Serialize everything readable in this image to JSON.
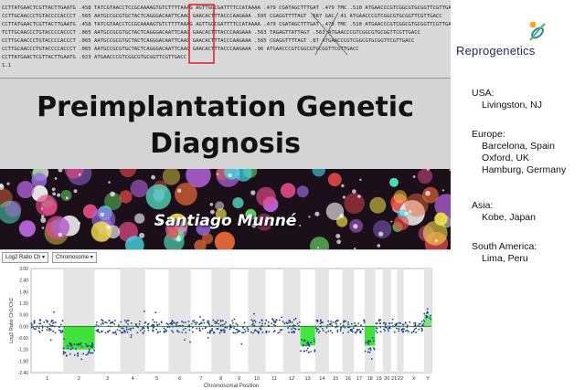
{
  "sequence": {
    "lines": [
      "CCTTATGAACTCGTTACTTGAATG .458 TATCGTAACCTCCGCAAAAGTGTCTTTTAAAG AGTTGGCGATTTTCCATAAAA .479 CGATAGCTTTGAT .479 TMC .510 ATGAACCCGTCGGCGTGCGGTTCGTTGACC",
      "CCTTGCAACCCTGTACCCCACCCT .565 AATGCCGCGTGCTACTCAGGGACAATTCAAG GAACACTTTACCCAAGAAA .595 CGAGGTTTTAGT .587 GAC .41 ATGAACCCGTCGGCGTGCGGTTCGTTGACC",
      "CCTTATGAACTCGTTACTTGAATG .458 TATCGTAACCTCCGCAAAAGTGTCTTTTAAAG AGTTGGCGATTTTCCATAAAA .479 CGATAGCTTTGAT .479 TMC .510 ATGAACCCGTCGGCGTGCGGTTCGTTGACC",
      "TCTTGCAACCCTGTACCCCACCCT .065 AATGCCGCGTGCTACTCAGGGACAATTCAAG GAACACTTTACCCAAGAAA .563 TAGAGTTATTAGT .563 ATGAACCCGTCGGCGTGCGGTTCGTTGACC",
      "CCTTGCAACCCTGTACCCCACCCT .065 AATGCCGCGTGCTACTCAGGGACAATTCAAG GAACACTTTACCCAAGAAA .565 CGAGGTTTTAGT .87 ATGAACCCGTCGGCGTGCGGTTCGTTGACC",
      "CCTTGCAACCCTGTACCCCACCCT .065 AATGCCGCGTGCTACTCAGGGACAATTCAAG GAACACTTTACCCAAGAAA .96 ATGAACCCGTCGGCGTGCGGTTCGTTGACC",
      "CCTTATGAACTCGTTACTTGAATG .023 ATGAACCCGTCGGCGTGCGGTTCGTTGACC",
      "1.1"
    ]
  },
  "slide": {
    "title": "Preimplantation Genetic Diagnosis",
    "author": "Santiago Munné"
  },
  "logo": {
    "text": "Reprogenetics",
    "colors": [
      "#f5a623",
      "#2c7fc0",
      "#5cb85c"
    ]
  },
  "locations": [
    {
      "region": "USA:",
      "cities": [
        "Livingston, NJ"
      ]
    },
    {
      "region": "Europe:",
      "cities": [
        "Barcelona, Spain",
        "Oxford, UK",
        "Hamburg, Germany"
      ]
    },
    {
      "region": "Asia:",
      "cities": [
        "Kobe, Japan"
      ]
    },
    {
      "region": "South America:",
      "cities": [
        "Lima, Peru"
      ]
    }
  ],
  "plot": {
    "dropdown_1": "Log2 Ratio Ch",
    "dropdown_2": "Chromosome",
    "ylabel": "Log2 Ratio Ch1/Ch2",
    "xlabel": "Chromosomal Position",
    "y_ticks": [
      "3.00",
      "2.40",
      "1.80",
      "1.20",
      "0.60",
      "0.00",
      "-0.60",
      "-1.20",
      "-1.80",
      "-2.40"
    ],
    "chromosomes": [
      "1",
      "2",
      "3",
      "4",
      "5",
      "6",
      "7",
      "8",
      "9",
      "10",
      "11",
      "12",
      "13",
      "14",
      "15",
      "16",
      "17",
      "18",
      "19",
      "20",
      "21",
      "22",
      "X",
      "Y"
    ],
    "losses": [
      "2",
      "13",
      "18"
    ],
    "gains": [
      "Y"
    ],
    "colors": {
      "points": "#1e3a8a",
      "loss": "#22e01c",
      "band": "#e5e5e5"
    }
  },
  "chart_data": {
    "type": "scatter",
    "xlabel": "Chromosomal Position",
    "ylabel": "Log2 Ratio Ch1/Ch2",
    "ylim": [
      -2.4,
      3.0
    ],
    "categories": [
      "1",
      "2",
      "3",
      "4",
      "5",
      "6",
      "7",
      "8",
      "9",
      "10",
      "11",
      "12",
      "13",
      "14",
      "15",
      "16",
      "17",
      "18",
      "19",
      "20",
      "21",
      "22",
      "X",
      "Y"
    ],
    "series": [
      {
        "values": [
          0.0,
          -1.2,
          0.0,
          0.0,
          0.0,
          0.0,
          0.0,
          0.0,
          0.0,
          0.0,
          0.0,
          0.0,
          -1.0,
          0.0,
          0.0,
          0.0,
          0.0,
          -1.0,
          0.0,
          0.0,
          0.0,
          0.0,
          0.0,
          0.6
        ]
      }
    ]
  }
}
